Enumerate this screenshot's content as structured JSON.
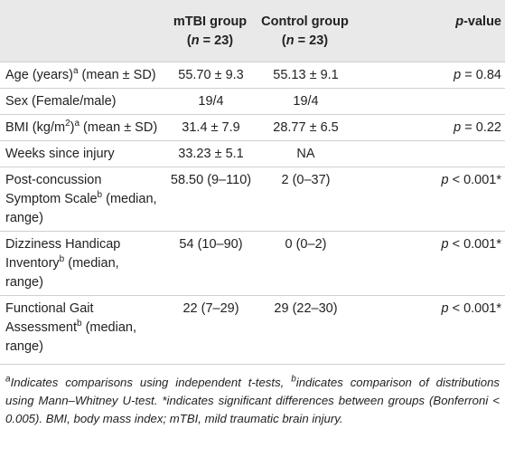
{
  "table": {
    "header": [
      [
        [
          "mTBI group"
        ],
        [
          "(",
          {
            "em": "n"
          },
          " = 23)"
        ]
      ],
      [
        [
          "Control group"
        ],
        [
          "(",
          {
            "em": "n"
          },
          " = 23)"
        ]
      ],
      [
        [
          {
            "em": "p"
          },
          "-value"
        ]
      ]
    ],
    "rows": [
      [
        [
          "Age (years)",
          {
            "sup": "a"
          },
          " (mean ± SD)"
        ],
        [
          "55.70 ± 9.3"
        ],
        [
          "55.13 ± 9.1"
        ],
        [
          {
            "em": "p"
          },
          " = 0.84"
        ]
      ],
      [
        [
          "Sex (Female/male)"
        ],
        [
          "19/4"
        ],
        [
          "19/4"
        ]
      ],
      [
        [
          "BMI (kg/m",
          {
            "sup": "2"
          },
          ")",
          {
            "sup": "a"
          },
          " (mean ± SD)"
        ],
        [
          "31.4 ± 7.9"
        ],
        [
          "28.77 ± 6.5"
        ],
        [
          {
            "em": "p"
          },
          " =  0.22"
        ]
      ],
      [
        [
          "Weeks since injury"
        ],
        [
          "33.23 ± 5.1"
        ],
        [
          "NA"
        ]
      ],
      [
        [
          "Post-concussion Symptom Scale",
          {
            "sup": "b"
          },
          " (median, range)"
        ],
        [
          "58.50 (9–110)"
        ],
        [
          "2 (0–37)"
        ],
        [
          {
            "em": "p"
          },
          " < 0.001*"
        ]
      ],
      [
        [
          "Dizziness Handicap Inventory",
          {
            "sup": "b"
          },
          " (median, range)"
        ],
        [
          "54 (10–90)"
        ],
        [
          "0 (0–2)"
        ],
        [
          {
            "em": "p"
          },
          " <  0.001*"
        ]
      ],
      [
        [
          "Functional Gait Assessment",
          {
            "sup": "b"
          },
          " (median, range)"
        ],
        [
          "22 (7–29)"
        ],
        [
          "29 (22–30)"
        ],
        [
          {
            "em": "p"
          },
          " <  0.001*"
        ]
      ]
    ]
  },
  "footnote": [
    {
      "sup": "a"
    },
    "Indicates comparisons using independent t-tests, ",
    {
      "sup": "b"
    },
    "indicates comparison of distributions using Mann–Whitney U-test. *indicates significant differences between groups (Bonferroni < 0.005). BMI, body mass index; mTBI, mild traumatic brain injury."
  ]
}
